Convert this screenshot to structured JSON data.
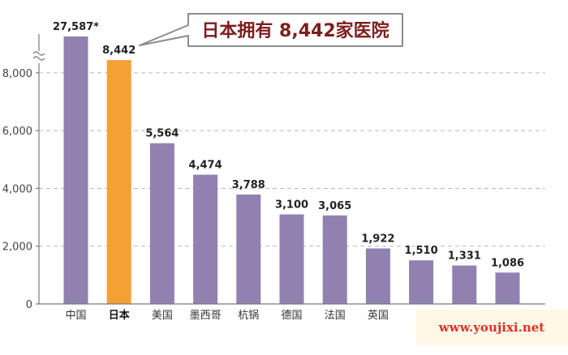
{
  "chart_data": {
    "type": "bar",
    "title": "",
    "xlabel": "",
    "ylabel": "",
    "categories": [
      "中国",
      "日本",
      "美国",
      "墨西哥",
      "杭锅",
      "德国",
      "法国",
      "英国",
      "",
      "",
      ""
    ],
    "values": [
      27587,
      8442,
      5564,
      4474,
      3788,
      3100,
      3065,
      1922,
      1510,
      1331,
      1086
    ],
    "value_labels": [
      "27,587*",
      "8,442",
      "5,564",
      "4,474",
      "3,788",
      "3,100",
      "3,065",
      "1,922",
      "1,510",
      "1,331",
      "1,086"
    ],
    "highlight_index": 1,
    "ylim": [
      0,
      9000
    ],
    "axis_break": true,
    "yticks": [
      0,
      2000,
      4000,
      6000,
      8000
    ],
    "ytick_labels": [
      "0",
      "2,000",
      "4,000",
      "6,000",
      "8,000"
    ],
    "grid": "horizontal-dashed",
    "colors": {
      "bar": "#9181b1",
      "highlight": "#f5a033",
      "grid": "#b8b8b8",
      "callout_border": "#8c8c8c",
      "callout_text": "#7d1e1e"
    },
    "annotation": "日本拥有 8,442家医院"
  },
  "watermark": {
    "text": "www.youjixi.net"
  }
}
